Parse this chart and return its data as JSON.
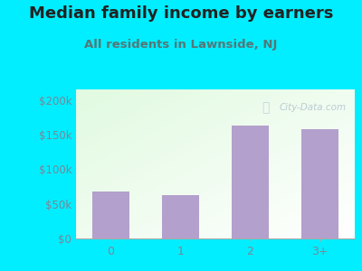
{
  "title": "Median family income by earners",
  "subtitle": "All residents in Lawnside, NJ",
  "categories": [
    "0",
    "1",
    "2",
    "3+"
  ],
  "values": [
    68000,
    62000,
    163000,
    158000
  ],
  "bar_color": "#b3a0cc",
  "outer_bg": "#00eeff",
  "yticks": [
    0,
    50000,
    100000,
    150000,
    200000
  ],
  "ytick_labels": [
    "$0",
    "$50k",
    "$100k",
    "$150k",
    "$200k"
  ],
  "ylim": [
    0,
    215000
  ],
  "title_fontsize": 13,
  "subtitle_fontsize": 9.5,
  "title_color": "#222222",
  "subtitle_color": "#557777",
  "tick_color": "#778899",
  "watermark": "City-Data.com"
}
